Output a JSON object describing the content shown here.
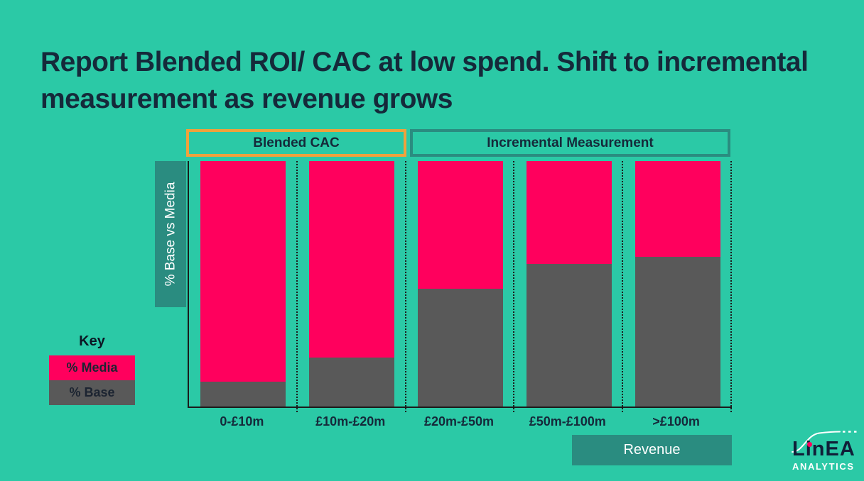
{
  "title": "Report Blended ROI/ CAC at low spend. Shift to incremental measurement as revenue grows",
  "key": {
    "title": "Key"
  },
  "logo": {
    "name": "LinEA",
    "subtitle": "ANALYTICS"
  },
  "colors": {
    "background": "#2bc9a6",
    "media_pink": "#ff005d",
    "base_gray": "#595959",
    "dark_teal": "#2a8c80",
    "orange_border": "#f0a23c",
    "text_dark": "#15293a"
  },
  "chart_data": {
    "type": "bar",
    "stacked": true,
    "unit": "percent",
    "title": "Report Blended ROI/ CAC at low spend. Shift to incremental measurement as revenue grows",
    "categories": [
      "0-£10m",
      "£10m-£20m",
      "£20m-£50m",
      "£50m-£100m",
      ">£100m"
    ],
    "series": [
      {
        "name": "% Base",
        "color": "#595959",
        "values": [
          10,
          20,
          48,
          58,
          61
        ]
      },
      {
        "name": "% Media",
        "color": "#ff005d",
        "values": [
          90,
          80,
          52,
          42,
          39
        ]
      }
    ],
    "xlabel": "Revenue",
    "ylabel": "% Base vs Media",
    "ylim": [
      0,
      100
    ],
    "grid": false,
    "legend_position": "left",
    "annotations": [
      {
        "label": "Blended CAC",
        "categories": [
          "0-£10m",
          "£10m-£20m"
        ],
        "border_color": "#f0a23c"
      },
      {
        "label": "Incremental Measurement",
        "categories": [
          "£20m-£50m",
          "£50m-£100m",
          ">£100m"
        ],
        "border_color": "#2a8c80"
      }
    ]
  }
}
